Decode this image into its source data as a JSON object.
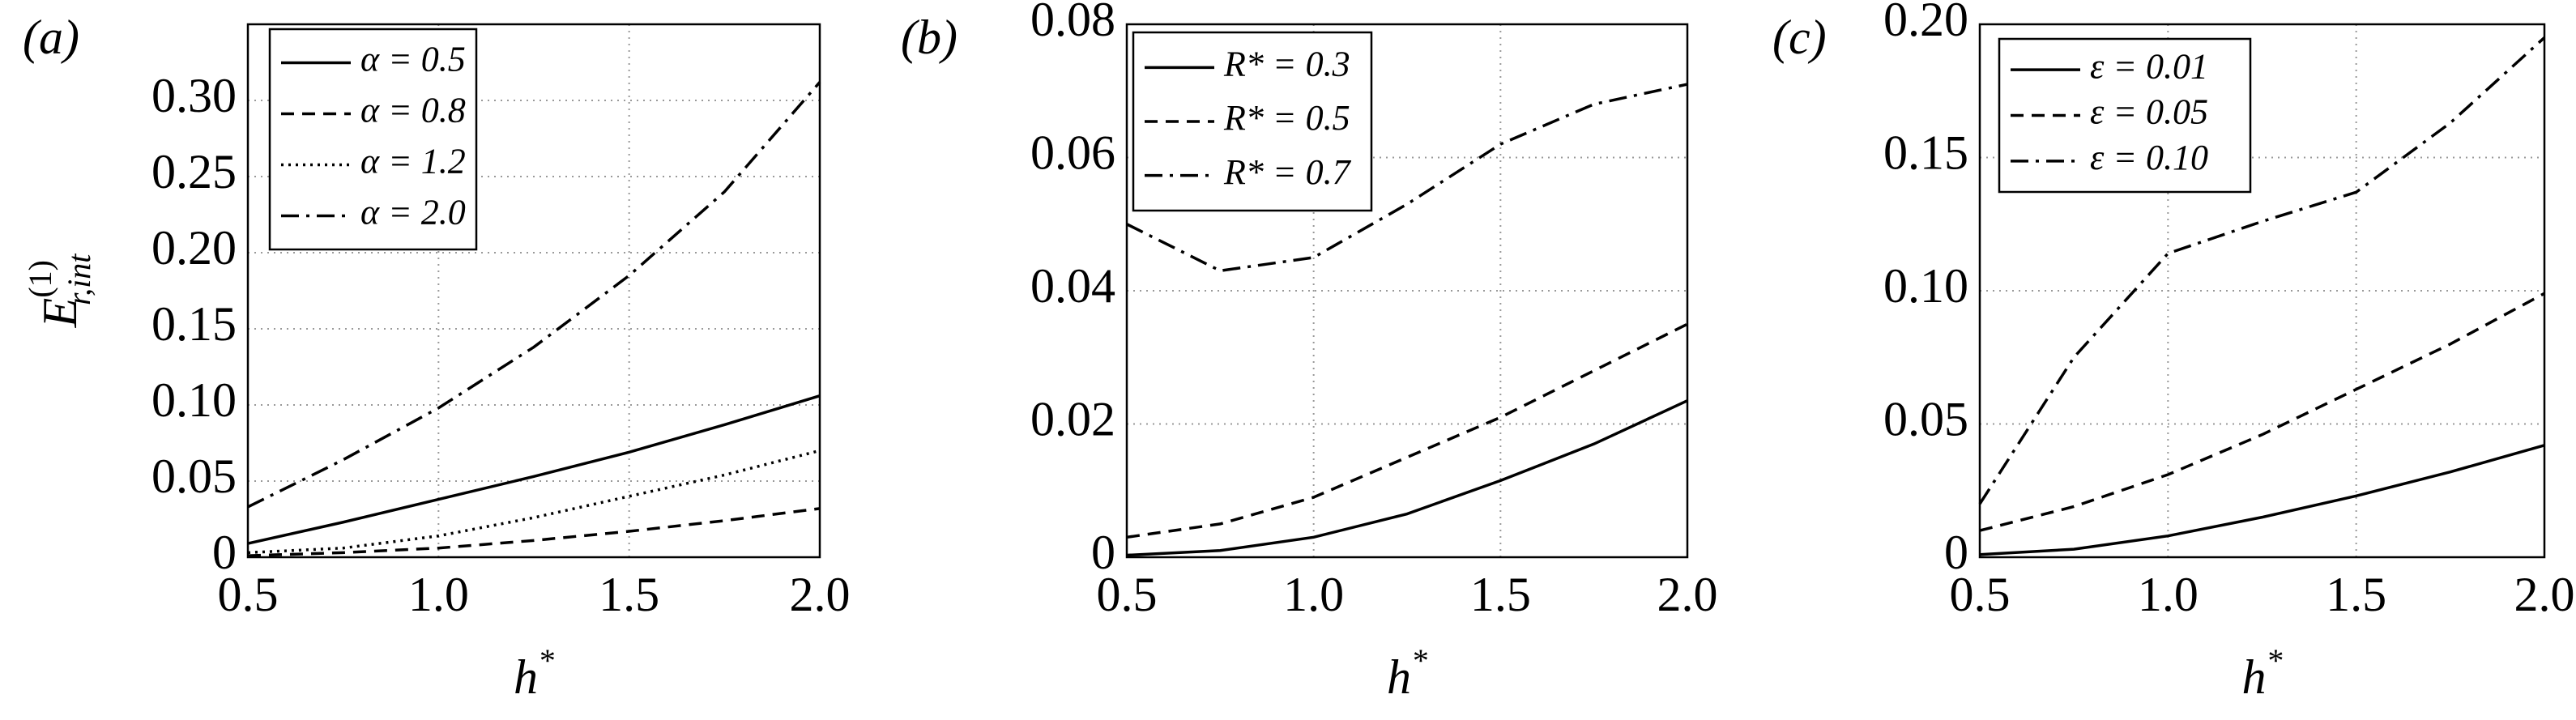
{
  "chart_data": [
    {
      "type": "line",
      "panel_label": "(a)",
      "ylabel": {
        "base": "E",
        "sup": "(1)",
        "sub": "r,int"
      },
      "xlabel": {
        "base": "h",
        "sup": "*"
      },
      "x": [
        0.5,
        0.75,
        1.0,
        1.25,
        1.5,
        1.75,
        2.0
      ],
      "xlim": [
        0.5,
        2.0
      ],
      "xticks": [
        0.5,
        {
          "value": 1,
          "label": "1.0"
        },
        1.5,
        {
          "value": 2,
          "label": "2.0"
        }
      ],
      "ylim": [
        0,
        0.35
      ],
      "yticks": [
        0,
        0.05,
        {
          "value": 0.1,
          "label": "0.10"
        },
        0.15,
        {
          "value": 0.2,
          "label": "0.20"
        },
        0.25,
        {
          "value": 0.3,
          "label": "0.30"
        }
      ],
      "grid": true,
      "series": [
        {
          "name": "α = 0.5",
          "color": "#000000",
          "style": "solid",
          "values": [
            0.009,
            0.023,
            0.038,
            0.053,
            0.069,
            0.087,
            0.106
          ]
        },
        {
          "name": "α = 0.8",
          "color": "#000000",
          "style": "dashed",
          "values": [
            0.001,
            0.003,
            0.006,
            0.011,
            0.017,
            0.024,
            0.032
          ]
        },
        {
          "name": "α = 1.2",
          "color": "#000000",
          "style": "dotted",
          "values": [
            0.003,
            0.006,
            0.014,
            0.026,
            0.04,
            0.054,
            0.07
          ]
        },
        {
          "name": "α = 2.0",
          "color": "#000000",
          "style": "dashdot",
          "values": [
            0.033,
            0.064,
            0.098,
            0.138,
            0.185,
            0.24,
            0.312
          ]
        }
      ]
    },
    {
      "type": "line",
      "panel_label": "(b)",
      "xlabel": {
        "base": "h",
        "sup": "*"
      },
      "x": [
        0.5,
        0.75,
        1.0,
        1.25,
        1.5,
        1.75,
        2.0
      ],
      "xlim": [
        0.5,
        2.0
      ],
      "xticks": [
        0.5,
        {
          "value": 1,
          "label": "1.0"
        },
        1.5,
        {
          "value": 2,
          "label": "2.0"
        }
      ],
      "ylim": [
        0,
        0.08
      ],
      "yticks": [
        0,
        0.02,
        0.04,
        0.06,
        0.08
      ],
      "grid": true,
      "series": [
        {
          "name": "R* = 0.3",
          "color": "#000000",
          "style": "solid",
          "values": [
            0.0003,
            0.001,
            0.003,
            0.0065,
            0.0115,
            0.017,
            0.0235
          ]
        },
        {
          "name": "R* = 0.5",
          "color": "#000000",
          "style": "dashed",
          "values": [
            0.003,
            0.005,
            0.009,
            0.015,
            0.021,
            0.028,
            0.035
          ]
        },
        {
          "name": "R* = 0.7",
          "color": "#000000",
          "style": "dashdot",
          "values": [
            0.05,
            0.043,
            0.045,
            0.053,
            0.062,
            0.068,
            0.071
          ]
        }
      ]
    },
    {
      "type": "line",
      "panel_label": "(c)",
      "xlabel": {
        "base": "h",
        "sup": "*"
      },
      "x": [
        0.5,
        0.75,
        1.0,
        1.25,
        1.5,
        1.75,
        2.0
      ],
      "xlim": [
        0.5,
        2.0
      ],
      "xticks": [
        0.5,
        {
          "value": 1,
          "label": "1.0"
        },
        1.5,
        {
          "value": 2,
          "label": "2.0"
        }
      ],
      "ylim": [
        0,
        0.2
      ],
      "yticks": [
        0,
        0.05,
        {
          "value": 0.1,
          "label": "0.10"
        },
        0.15,
        {
          "value": 0.2,
          "label": "0.20"
        }
      ],
      "grid": true,
      "series": [
        {
          "name": "ε = 0.01",
          "color": "#000000",
          "style": "solid",
          "values": [
            0.001,
            0.003,
            0.008,
            0.015,
            0.023,
            0.032,
            0.042
          ]
        },
        {
          "name": "ε = 0.05",
          "color": "#000000",
          "style": "dashed",
          "values": [
            0.01,
            0.019,
            0.031,
            0.046,
            0.063,
            0.08,
            0.099
          ]
        },
        {
          "name": "ε = 0.10",
          "color": "#000000",
          "style": "dashdot",
          "values": [
            0.02,
            0.075,
            0.114,
            0.126,
            0.137,
            0.163,
            0.195
          ]
        }
      ]
    }
  ]
}
